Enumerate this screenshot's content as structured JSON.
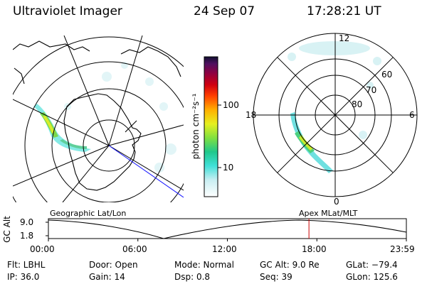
{
  "header": {
    "instrument": "Ultraviolet Imager",
    "date": "24 Sep 07",
    "time": "17:28:21 UT"
  },
  "colorbar": {
    "unit_label": "photon cm⁻²s⁻¹",
    "ticks": [
      "100",
      "10"
    ]
  },
  "maps": {
    "left_title": "Geographic Lat/Lon",
    "right_title": "Apex MLat/MLT",
    "right_mlt_labels": [
      "12",
      "18",
      "6",
      "0"
    ],
    "right_lat_labels": [
      "60",
      "70",
      "80"
    ]
  },
  "timeline": {
    "axis_label": "GC Alt",
    "y_ticks": [
      "9.0",
      "1.8"
    ],
    "x_ticks": [
      "00:00",
      "06:00",
      "12:00",
      "18:00",
      "23:59"
    ],
    "current_time_fraction": 0.7279,
    "marker_color": "#cc0000"
  },
  "status": {
    "filter": "Flt: LBHL",
    "door": "Door: Open",
    "mode": "Mode: Normal",
    "gc_alt": "GC Alt: 9.0 Re",
    "glat": "GLat: −79.4",
    "ip": "IP: 36.0",
    "gain": "Gain: 14",
    "dsp": "Dsp:     0.8",
    "seq": "Seq: 39",
    "glon": "GLon: 125.6"
  }
}
